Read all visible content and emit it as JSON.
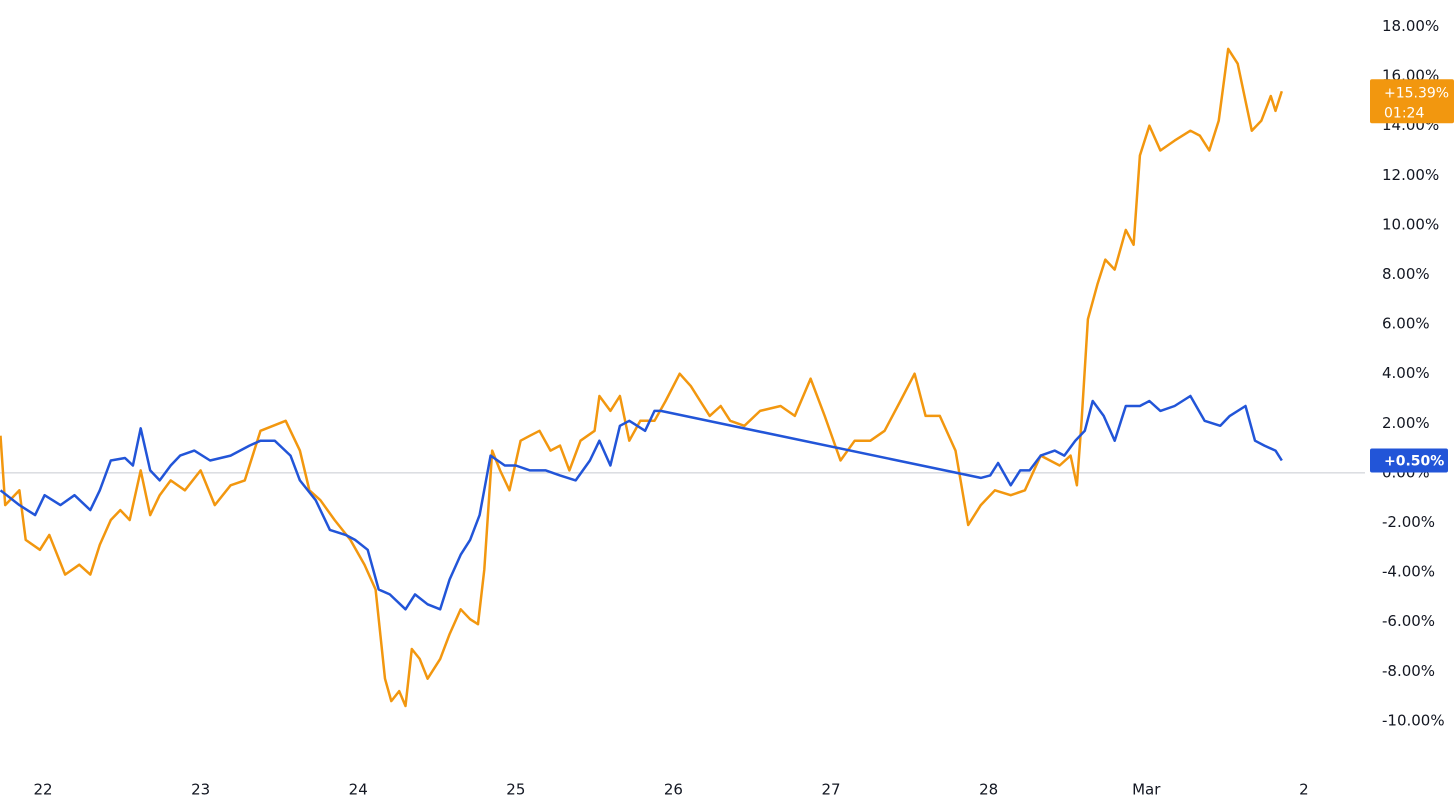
{
  "chart_data": {
    "type": "line",
    "xlim": [
      -0.273,
      8.388
    ],
    "xticks": [
      {
        "value": 0,
        "label": "22"
      },
      {
        "value": 1,
        "label": "23"
      },
      {
        "value": 2,
        "label": "24"
      },
      {
        "value": 3,
        "label": "25"
      },
      {
        "value": 4,
        "label": "26"
      },
      {
        "value": 5,
        "label": "27"
      },
      {
        "value": 6,
        "label": "28"
      },
      {
        "value": 7,
        "label": "Mar"
      },
      {
        "value": 8,
        "label": "2"
      }
    ],
    "ylim": [
      -11.98,
      19.07
    ],
    "yticks": [
      {
        "value": -10,
        "label": "-10.00%"
      },
      {
        "value": -8,
        "label": "-8.00%"
      },
      {
        "value": -6,
        "label": "-6.00%"
      },
      {
        "value": -4,
        "label": "-4.00%"
      },
      {
        "value": -2,
        "label": "-2.00%"
      },
      {
        "value": 0,
        "label": "0.00%"
      },
      {
        "value": 2,
        "label": "2.00%"
      },
      {
        "value": 4,
        "label": "4.00%"
      },
      {
        "value": 6,
        "label": "6.00%"
      },
      {
        "value": 8,
        "label": "8.00%"
      },
      {
        "value": 10,
        "label": "10.00%"
      },
      {
        "value": 12,
        "label": "12.00%"
      },
      {
        "value": 14,
        "label": "14.00%"
      },
      {
        "value": 16,
        "label": "16.00%"
      },
      {
        "value": 18,
        "label": "18.00%"
      }
    ],
    "baseline": 0,
    "series": [
      {
        "color": "#f2970f",
        "badge": "+15.39%",
        "countdown": "01:24",
        "x": [
          -0.27,
          -0.24,
          -0.15,
          -0.11,
          -0.02,
          0.04,
          0.14,
          0.23,
          0.3,
          0.36,
          0.43,
          0.49,
          0.55,
          0.62,
          0.68,
          0.74,
          0.81,
          0.9,
          1.0,
          1.09,
          1.19,
          1.28,
          1.38,
          1.54,
          1.63,
          1.69,
          1.76,
          1.85,
          1.95,
          2.04,
          2.11,
          2.17,
          2.21,
          2.26,
          2.3,
          2.34,
          2.39,
          2.44,
          2.52,
          2.58,
          2.65,
          2.71,
          2.76,
          2.8,
          2.85,
          2.9,
          2.96,
          3.03,
          3.09,
          3.15,
          3.22,
          3.28,
          3.34,
          3.41,
          3.5,
          3.53,
          3.6,
          3.66,
          3.72,
          3.79,
          3.88,
          3.95,
          4.04,
          4.11,
          4.17,
          4.23,
          4.3,
          4.36,
          4.45,
          4.55,
          4.68,
          4.77,
          4.87,
          4.96,
          5.06,
          5.15,
          5.25,
          5.34,
          5.44,
          5.53,
          5.6,
          5.69,
          5.79,
          5.87,
          5.95,
          6.04,
          6.14,
          6.23,
          6.33,
          6.45,
          6.52,
          6.56,
          6.59,
          6.63,
          6.69,
          6.74,
          6.8,
          6.87,
          6.92,
          6.96,
          7.02,
          7.09,
          7.18,
          7.28,
          7.34,
          7.4,
          7.46,
          7.52,
          7.58,
          7.63,
          7.67,
          7.73,
          7.79,
          7.82,
          7.86
        ],
        "values": [
          1.5,
          -1.3,
          -0.7,
          -2.7,
          -3.1,
          -2.5,
          -4.1,
          -3.7,
          -4.1,
          -2.9,
          -1.9,
          -1.5,
          -1.9,
          0.1,
          -1.7,
          -0.9,
          -0.3,
          -0.7,
          0.1,
          -1.3,
          -0.5,
          -0.3,
          1.7,
          2.1,
          0.9,
          -0.7,
          -1.1,
          -1.9,
          -2.7,
          -3.7,
          -4.7,
          -8.3,
          -9.2,
          -8.8,
          -9.4,
          -7.1,
          -7.5,
          -8.3,
          -7.5,
          -6.5,
          -5.5,
          -5.9,
          -6.1,
          -3.9,
          0.9,
          0.1,
          -0.7,
          1.3,
          1.5,
          1.7,
          0.9,
          1.1,
          0.1,
          1.3,
          1.7,
          3.1,
          2.5,
          3.1,
          1.3,
          2.1,
          2.1,
          2.9,
          4.0,
          3.5,
          2.9,
          2.3,
          2.7,
          2.1,
          1.9,
          2.5,
          2.7,
          2.3,
          3.8,
          2.3,
          0.5,
          1.3,
          1.3,
          1.7,
          2.9,
          4.0,
          2.3,
          2.3,
          0.9,
          -2.1,
          -1.3,
          -0.7,
          -0.9,
          -0.7,
          0.7,
          0.3,
          0.7,
          -0.5,
          2.1,
          6.2,
          7.6,
          8.6,
          8.2,
          9.8,
          9.2,
          12.8,
          14.0,
          13.0,
          13.4,
          13.8,
          13.6,
          13.0,
          14.2,
          17.1,
          16.5,
          15.0,
          13.8,
          14.2,
          15.2,
          14.6,
          15.39
        ]
      },
      {
        "color": "#2255d8",
        "badge": "+0.50%",
        "x": [
          -0.27,
          -0.15,
          -0.05,
          0.01,
          0.11,
          0.2,
          0.3,
          0.36,
          0.43,
          0.52,
          0.57,
          0.62,
          0.68,
          0.74,
          0.81,
          0.87,
          0.96,
          1.06,
          1.19,
          1.31,
          1.38,
          1.47,
          1.57,
          1.63,
          1.73,
          1.82,
          1.92,
          1.98,
          2.06,
          2.13,
          2.2,
          2.3,
          2.36,
          2.44,
          2.52,
          2.58,
          2.65,
          2.71,
          2.77,
          2.84,
          2.93,
          3.0,
          3.09,
          3.19,
          3.28,
          3.38,
          3.47,
          3.53,
          3.6,
          3.66,
          3.72,
          3.82,
          3.88,
          3.92,
          5.95,
          6.01,
          6.06,
          6.14,
          6.2,
          6.26,
          6.33,
          6.42,
          6.48,
          6.55,
          6.61,
          6.66,
          6.73,
          6.8,
          6.87,
          6.96,
          7.02,
          7.09,
          7.18,
          7.28,
          7.37,
          7.47,
          7.53,
          7.63,
          7.69,
          7.75,
          7.82,
          7.86
        ],
        "values": [
          -0.7,
          -1.3,
          -1.7,
          -0.9,
          -1.3,
          -0.9,
          -1.5,
          -0.7,
          0.5,
          0.6,
          0.3,
          1.8,
          0.1,
          -0.3,
          0.3,
          0.7,
          0.9,
          0.5,
          0.7,
          1.1,
          1.3,
          1.3,
          0.7,
          -0.3,
          -1.1,
          -2.3,
          -2.5,
          -2.7,
          -3.1,
          -4.7,
          -4.9,
          -5.5,
          -4.9,
          -5.3,
          -5.5,
          -4.3,
          -3.3,
          -2.7,
          -1.7,
          0.7,
          0.3,
          0.3,
          0.1,
          0.1,
          -0.1,
          -0.3,
          0.5,
          1.3,
          0.3,
          1.9,
          2.1,
          1.7,
          2.5,
          2.5,
          -0.2,
          -0.1,
          0.4,
          -0.5,
          0.1,
          0.1,
          0.7,
          0.9,
          0.7,
          1.3,
          1.7,
          2.9,
          2.3,
          1.3,
          2.7,
          2.7,
          2.9,
          2.5,
          2.7,
          3.1,
          2.1,
          1.9,
          2.3,
          2.7,
          1.3,
          1.1,
          0.9,
          0.5
        ]
      }
    ]
  }
}
